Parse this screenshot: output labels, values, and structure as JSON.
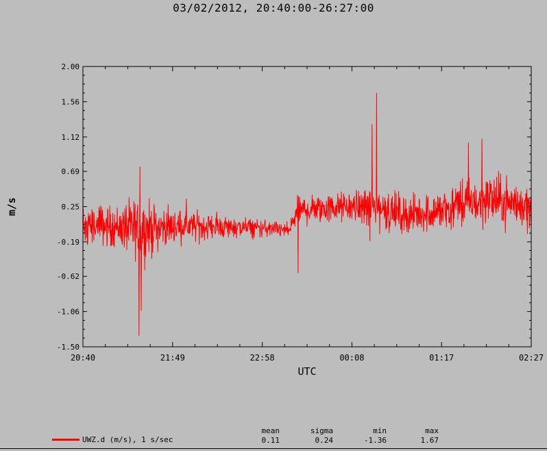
{
  "header": {
    "title": "03/02/2012, 20:40:00-26:27:00"
  },
  "chart_data": {
    "type": "line",
    "xlabel": "UTC",
    "ylabel": "m/s",
    "x_ticks": [
      "20:40",
      "21:49",
      "22:58",
      "00:08",
      "01:17",
      "02:27"
    ],
    "y_ticks": [
      "2.00",
      "1.56",
      "1.12",
      "0.69",
      "0.25",
      "-0.19",
      "-0.62",
      "-1.06",
      "-1.50"
    ],
    "ylim": [
      -1.5,
      2.0
    ],
    "grid": false,
    "series": [
      {
        "name": "UWZ.d (m/s), 1 s/sec",
        "color": "#ff0000",
        "envelope_hint": [
          {
            "t": 0.0,
            "base": 0.02,
            "amp": 0.3
          },
          {
            "t": 0.08,
            "base": 0.0,
            "amp": 0.35
          },
          {
            "t": 0.13,
            "base": -0.05,
            "amp": 0.55
          },
          {
            "t": 0.18,
            "base": 0.0,
            "amp": 0.3
          },
          {
            "t": 0.3,
            "base": 0.0,
            "amp": 0.2
          },
          {
            "t": 0.4,
            "base": -0.02,
            "amp": 0.15
          },
          {
            "t": 0.46,
            "base": -0.05,
            "amp": 0.12
          },
          {
            "t": 0.48,
            "base": 0.2,
            "amp": 0.25
          },
          {
            "t": 0.6,
            "base": 0.25,
            "amp": 0.25
          },
          {
            "t": 0.65,
            "base": 0.25,
            "amp": 0.4
          },
          {
            "t": 0.72,
            "base": 0.15,
            "amp": 0.3
          },
          {
            "t": 0.8,
            "base": 0.2,
            "amp": 0.35
          },
          {
            "t": 0.9,
            "base": 0.35,
            "amp": 0.45
          },
          {
            "t": 1.0,
            "base": 0.25,
            "amp": 0.35
          }
        ]
      }
    ],
    "stats": {
      "headers": [
        "mean",
        "sigma",
        "min",
        "max"
      ],
      "values": [
        "0.11",
        "0.24",
        "-1.36",
        "1.67"
      ]
    }
  },
  "legend": {
    "label": "UWZ.d (m/s), 1 s/sec"
  }
}
